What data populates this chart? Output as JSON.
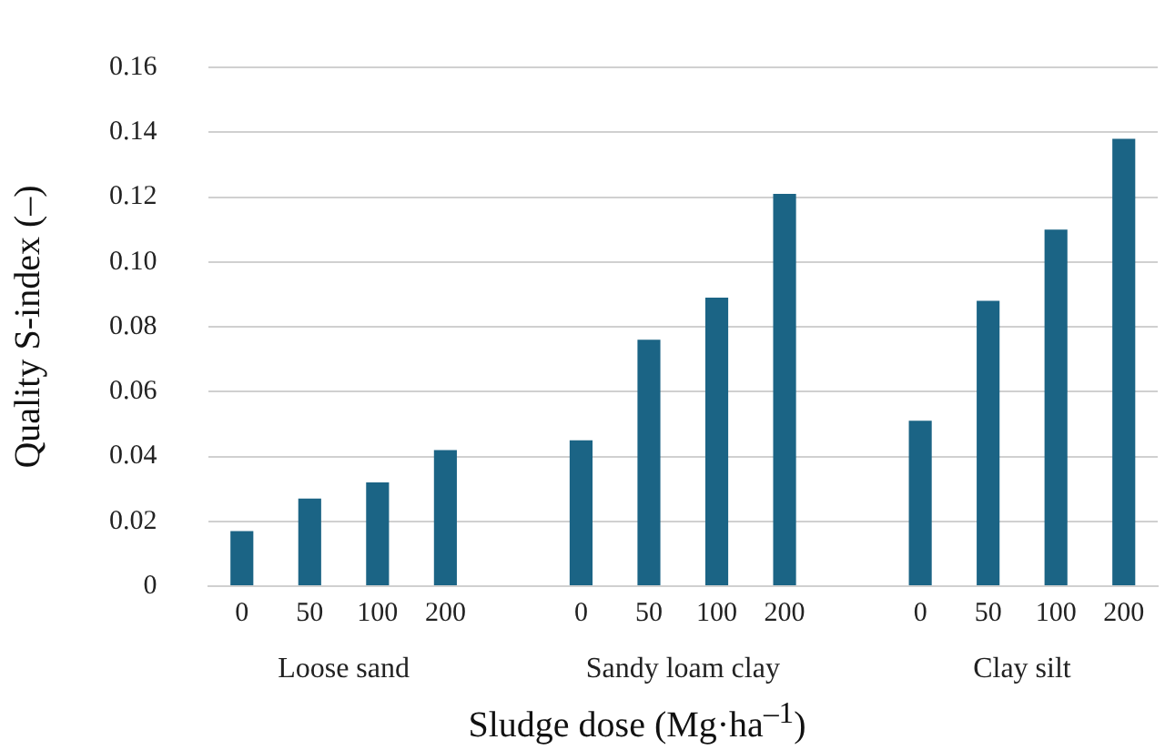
{
  "chart_data": {
    "type": "bar",
    "xlabel": "Sludge dose (Mg·ha$^{–1}$)",
    "ylabel": "Quality S-index (–)",
    "categories": [
      "0",
      "50",
      "100",
      "200",
      null,
      "0",
      "50",
      "100",
      "200",
      null,
      "0",
      "50",
      "100",
      "200"
    ],
    "values": [
      0.017,
      0.027,
      0.032,
      0.042,
      null,
      0.045,
      0.076,
      0.089,
      0.121,
      null,
      0.051,
      0.088,
      0.11,
      0.138
    ],
    "color": "#1b6485",
    "ylim": [
      0,
      0.16
    ],
    "yticks": [
      {
        "value": 0,
        "label": "0"
      },
      {
        "value": 0.02,
        "label": "0.02"
      },
      {
        "value": 0.04,
        "label": "0.04"
      },
      {
        "value": 0.06,
        "label": "0.06"
      },
      {
        "value": 0.08,
        "label": "0.08"
      },
      {
        "value": 0.1,
        "label": "0.10"
      },
      {
        "value": 0.12,
        "label": "0.12"
      },
      {
        "value": 0.14,
        "label": "0.14"
      },
      {
        "value": 0.16,
        "label": "0.16"
      }
    ],
    "grid": "y",
    "legend": false,
    "annotations": [
      "Loose sand",
      "Sandy loam clay",
      "Clay silt"
    ]
  }
}
